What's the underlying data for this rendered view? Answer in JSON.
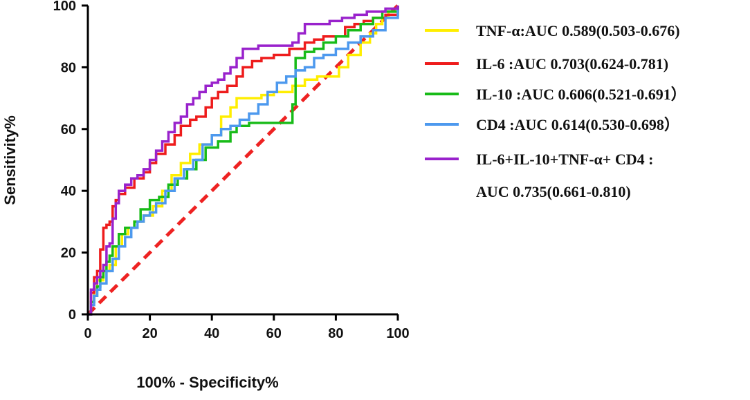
{
  "chart_data": {
    "type": "line",
    "title": "",
    "xlabel": "100% - Specificity%",
    "ylabel": "Sensitivity%",
    "xlim": [
      0,
      100
    ],
    "ylim": [
      0,
      100
    ],
    "xticks": [
      0,
      20,
      40,
      60,
      80,
      100
    ],
    "yticks": [
      0,
      20,
      40,
      60,
      80,
      100
    ],
    "legend_position": "right",
    "reference_line": {
      "name": "reference",
      "color": "#ee2222",
      "style": "dashed",
      "x": [
        0,
        100
      ],
      "y": [
        0,
        100
      ]
    },
    "series": [
      {
        "name": "TNF-α",
        "legend": "TNF-α:AUC 0.589(0.503-0.676)",
        "color": "#ffee00",
        "x": [
          0,
          1,
          2,
          3,
          5,
          7,
          9,
          11,
          13,
          15,
          18,
          21,
          24,
          27,
          30,
          33,
          36,
          40,
          43,
          46,
          48,
          52,
          56,
          60,
          63,
          66,
          70,
          74,
          78,
          81,
          84,
          88,
          91,
          93,
          95,
          97,
          100
        ],
        "y": [
          0,
          4,
          8,
          11,
          14,
          16,
          22,
          26,
          28,
          30,
          32,
          35,
          40,
          45,
          49,
          52,
          55,
          58,
          64,
          67,
          70,
          70,
          71,
          72,
          72,
          74,
          76,
          77,
          77,
          80,
          84,
          88,
          91,
          94,
          96,
          98,
          100
        ]
      },
      {
        "name": "IL-6",
        "legend": "IL-6    :AUC 0.703(0.624-0.781)",
        "color": "#ee1c1c",
        "x": [
          0,
          1,
          2,
          3,
          4,
          5,
          6,
          7,
          8,
          9,
          10,
          12,
          15,
          18,
          20,
          22,
          25,
          28,
          30,
          33,
          35,
          38,
          40,
          42,
          45,
          48,
          50,
          53,
          56,
          60,
          63,
          65,
          67,
          70,
          73,
          76,
          80,
          83,
          86,
          89,
          92,
          96,
          100
        ],
        "y": [
          0,
          7,
          12,
          14,
          21,
          28,
          29,
          30,
          35,
          37,
          39,
          41,
          44,
          46,
          49,
          52,
          55,
          58,
          61,
          63,
          64,
          67,
          70,
          72,
          74,
          77,
          80,
          82,
          83,
          84,
          84,
          86,
          86,
          88,
          89,
          90,
          90,
          93,
          94,
          95,
          96,
          97,
          100
        ]
      },
      {
        "name": "IL-10",
        "legend": "IL-10  :AUC 0.606(0.521-0.691）",
        "color": "#18bb18",
        "x": [
          0,
          1,
          2,
          3,
          4,
          5,
          6,
          7,
          8,
          10,
          12,
          15,
          17,
          20,
          23,
          26,
          29,
          32,
          35,
          38,
          42,
          46,
          48,
          52,
          56,
          60,
          63,
          66,
          67,
          70,
          73,
          76,
          80,
          84,
          88,
          92,
          95,
          100
        ],
        "y": [
          0,
          4,
          6,
          9,
          12,
          14,
          17,
          19,
          22,
          26,
          28,
          30,
          34,
          37,
          38,
          42,
          44,
          47,
          50,
          54,
          56,
          59,
          61,
          62,
          62,
          62,
          62,
          68,
          83,
          85,
          86,
          88,
          90,
          92,
          94,
          96,
          98,
          100
        ]
      },
      {
        "name": "CD4",
        "legend": "CD4    :AUC 0.614(0.530-0.698）",
        "color": "#4d99ee",
        "x": [
          0,
          1,
          2,
          3,
          4,
          6,
          8,
          10,
          12,
          14,
          16,
          18,
          20,
          22,
          25,
          28,
          31,
          34,
          37,
          40,
          43,
          46,
          49,
          52,
          55,
          58,
          61,
          64,
          67,
          70,
          73,
          76,
          80,
          84,
          88,
          92,
          96,
          100
        ],
        "y": [
          0,
          3,
          6,
          8,
          10,
          14,
          18,
          22,
          25,
          28,
          30,
          32,
          33,
          36,
          40,
          44,
          47,
          50,
          55,
          58,
          60,
          61,
          63,
          65,
          68,
          72,
          75,
          77,
          79,
          80,
          83,
          84,
          86,
          88,
          90,
          92,
          96,
          100
        ]
      },
      {
        "name": "IL-6+IL-10+TNF-α+ CD4",
        "legend_line1": "IL-6+IL-10+TNF-α+ CD4 :",
        "legend_line2": "AUC 0.735(0.661-0.810)",
        "color": "#9922cc",
        "x": [
          0,
          1,
          2,
          3,
          4,
          5,
          6,
          7,
          8,
          9,
          10,
          12,
          14,
          16,
          18,
          20,
          22,
          24,
          26,
          28,
          30,
          32,
          34,
          36,
          38,
          40,
          42,
          44,
          46,
          48,
          50,
          55,
          60,
          64,
          66,
          68,
          70,
          74,
          78,
          82,
          86,
          90,
          93,
          96,
          100
        ],
        "y": [
          0,
          8,
          10,
          12,
          14,
          16,
          22,
          23,
          31,
          36,
          40,
          42,
          44,
          45,
          47,
          50,
          53,
          56,
          59,
          62,
          64,
          68,
          70,
          72,
          74,
          75,
          76,
          78,
          80,
          83,
          86,
          87,
          87,
          87,
          88,
          91,
          94,
          94,
          95,
          96,
          97,
          98,
          98,
          99,
          100
        ]
      }
    ]
  }
}
